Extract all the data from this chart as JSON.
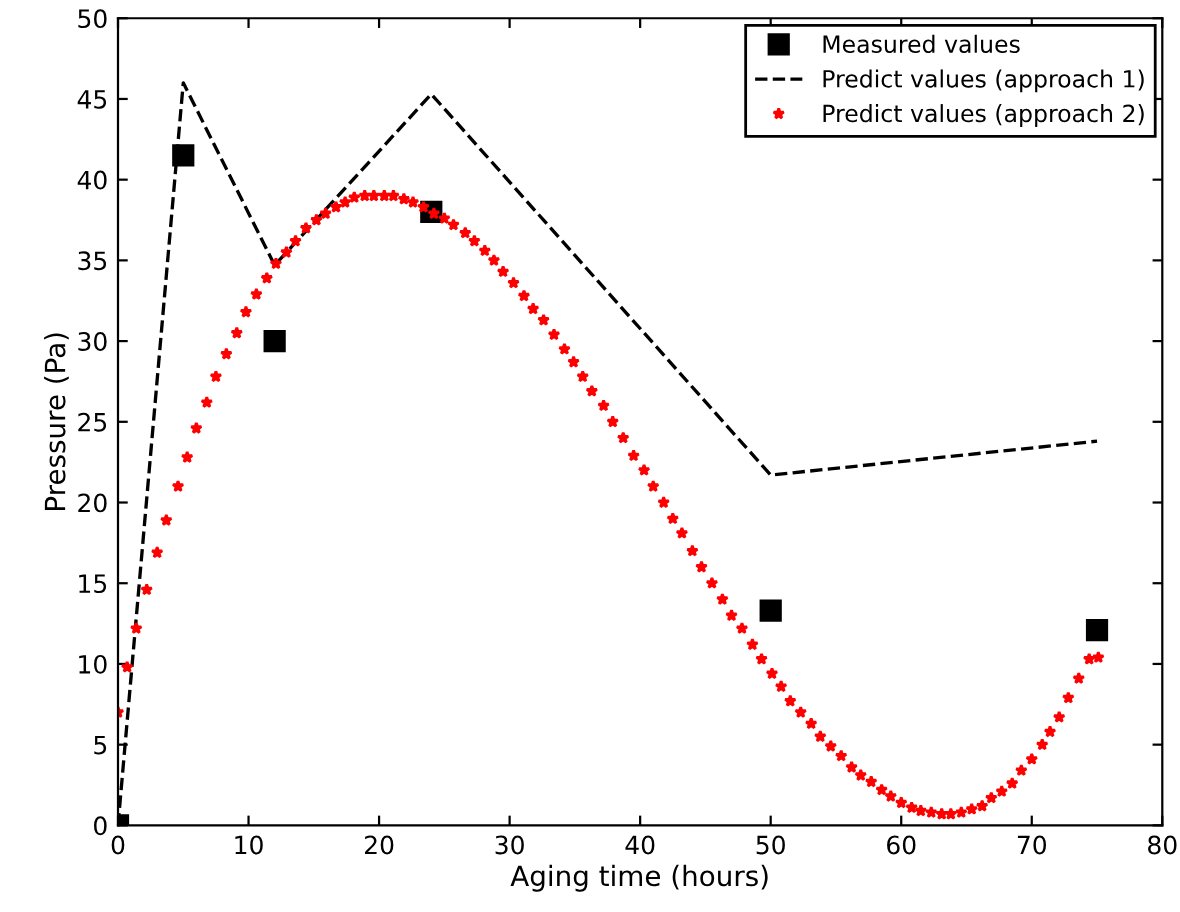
{
  "chart_data": {
    "type": "line",
    "xlabel": "Aging time (hours)",
    "ylabel": "Pressure (Pa)",
    "xlim": [
      0,
      80
    ],
    "ylim": [
      0,
      50
    ],
    "xticks": [
      0,
      10,
      20,
      30,
      40,
      50,
      60,
      70,
      80
    ],
    "yticks": [
      0,
      5,
      10,
      15,
      20,
      25,
      30,
      35,
      40,
      45,
      50
    ],
    "grid": false,
    "legend": "top right",
    "series": [
      {
        "name": "Measured values",
        "type": "scatter",
        "marker": "square",
        "color": "#000000",
        "x": [
          0,
          5,
          12,
          24,
          50,
          75
        ],
        "values": [
          0,
          41.5,
          30,
          38,
          13.3,
          12.1
        ]
      },
      {
        "name": "Predict values (approach 1)",
        "marker": "none",
        "line_style": "dashed",
        "color": "#000000",
        "x": [
          0,
          5,
          12,
          24,
          50,
          75
        ],
        "values": [
          0,
          46,
          34.7,
          45.3,
          21.7,
          23.8
        ]
      },
      {
        "name": "Predict values (approach 2)",
        "type": "scatter",
        "marker": "star",
        "color": "#ff0000",
        "x": [
          0,
          0.7,
          1.4,
          2.2,
          3,
          3.7,
          4.6,
          5.3,
          6,
          6.8,
          7.5,
          8.3,
          9.1,
          9.8,
          10.6,
          11.4,
          12.1,
          12.9,
          13.6,
          14.4,
          15.2,
          15.9,
          16.7,
          17.4,
          18.1,
          18.9,
          19.6,
          20.4,
          21.1,
          21.9,
          22.6,
          23.4,
          24.2,
          25,
          25.7,
          26.6,
          27.3,
          28.1,
          28.8,
          29.5,
          30.3,
          31.1,
          31.8,
          32.6,
          33.4,
          34.2,
          34.9,
          35.6,
          36.3,
          37.2,
          37.9,
          38.7,
          39.5,
          40.3,
          41,
          41.8,
          42.5,
          43.2,
          44,
          44.7,
          45.5,
          46.3,
          47,
          47.8,
          48.6,
          49.3,
          50.1,
          50.8,
          51.5,
          52.3,
          53.1,
          53.8,
          54.6,
          55.4,
          56.2,
          56.9,
          57.7,
          58.5,
          59.2,
          60,
          60.8,
          61.5,
          62.3,
          63.1,
          63.8,
          64.6,
          65.4,
          66.2,
          66.9,
          67.7,
          68.5,
          69.2,
          70,
          70.8,
          71.4,
          72.1,
          72.8,
          73.6,
          74.4,
          75.1
        ],
        "values": [
          7,
          9.8,
          12.2,
          14.6,
          16.9,
          18.9,
          21,
          22.8,
          24.6,
          26.2,
          27.8,
          29.2,
          30.5,
          31.8,
          32.9,
          33.9,
          34.8,
          35.5,
          36.2,
          37,
          37.5,
          37.9,
          38.3,
          38.6,
          38.9,
          39,
          39,
          39,
          39,
          38.8,
          38.6,
          38.3,
          37.9,
          37.6,
          37.2,
          36.7,
          36.2,
          35.6,
          35,
          34.3,
          33.6,
          32.8,
          32,
          31.3,
          30.4,
          29.5,
          28.7,
          27.8,
          26.9,
          26,
          25,
          24,
          22.9,
          22,
          21,
          20,
          19,
          18.1,
          17,
          16,
          15,
          14,
          13,
          12.2,
          11.2,
          10.3,
          9.4,
          8.6,
          7.7,
          7,
          6.3,
          5.5,
          4.9,
          4.3,
          3.6,
          3.1,
          2.7,
          2.2,
          1.8,
          1.4,
          1.1,
          0.9,
          0.8,
          0.7,
          0.7,
          0.8,
          1,
          1.2,
          1.7,
          2.1,
          2.6,
          3.4,
          4.1,
          5,
          5.8,
          6.7,
          7.9,
          9.1,
          10.3,
          10.4
        ]
      }
    ]
  }
}
